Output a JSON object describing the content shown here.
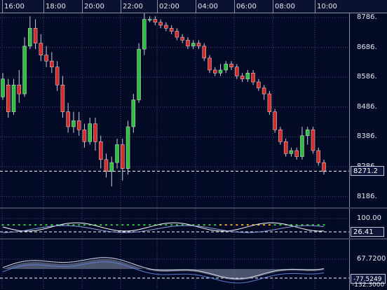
{
  "time_axis": {
    "labels": [
      "16:00",
      "18:00",
      "20:00",
      "22:00",
      "02:00",
      "04:00",
      "06:00",
      "08:00",
      "10:00"
    ]
  },
  "price_panel": {
    "ticks": [
      "8786.",
      "8686.",
      "8586.",
      "8486.",
      "8386.",
      "8286.",
      "8186."
    ],
    "current_price": "8271.2"
  },
  "indicator_panel_1": {
    "ticks": [
      "100.00"
    ],
    "current_value": "26.41"
  },
  "indicator_panel_2": {
    "ticks": [
      "67.7200",
      "-77.5249",
      "-132.3000"
    ]
  },
  "colors": {
    "background": "#030a26",
    "bull_candle": "#2fbf3f",
    "bear_candle": "#d42b2b",
    "grid": "#3a4a7a",
    "price_line": "#ffffff"
  },
  "chart_data": {
    "type": "candlestick",
    "x_labels": [
      "16:00",
      "18:00",
      "20:00",
      "22:00",
      "02:00",
      "04:00",
      "06:00",
      "08:00",
      "10:00"
    ],
    "y_ticks": [
      8786,
      8686,
      8586,
      8486,
      8386,
      8286,
      8186
    ],
    "last_price": 8271.2,
    "candles": [
      [
        8520,
        8580,
        8600,
        8510
      ],
      [
        8560,
        8470,
        8580,
        8450
      ],
      [
        8470,
        8560,
        8580,
        8460
      ],
      [
        8560,
        8530,
        8610,
        8500
      ],
      [
        8530,
        8690,
        8720,
        8520
      ],
      [
        8690,
        8750,
        8790,
        8680
      ],
      [
        8750,
        8700,
        8780,
        8680
      ],
      [
        8700,
        8660,
        8730,
        8640
      ],
      [
        8660,
        8640,
        8690,
        8620
      ],
      [
        8640,
        8620,
        8670,
        8600
      ],
      [
        8620,
        8560,
        8640,
        8540
      ],
      [
        8560,
        8470,
        8590,
        8450
      ],
      [
        8470,
        8420,
        8500,
        8400
      ],
      [
        8420,
        8440,
        8470,
        8400
      ],
      [
        8440,
        8410,
        8470,
        8390
      ],
      [
        8410,
        8370,
        8430,
        8350
      ],
      [
        8370,
        8430,
        8450,
        8360
      ],
      [
        8430,
        8370,
        8450,
        8340
      ],
      [
        8370,
        8310,
        8390,
        8280
      ],
      [
        8310,
        8270,
        8330,
        8250
      ],
      [
        8270,
        8300,
        8320,
        8220
      ],
      [
        8300,
        8360,
        8380,
        8280
      ],
      [
        8360,
        8280,
        8380,
        8240
      ],
      [
        8280,
        8420,
        8440,
        8260
      ],
      [
        8420,
        8510,
        8530,
        8400
      ],
      [
        8510,
        8680,
        8700,
        8500
      ],
      [
        8680,
        8780,
        8800,
        8660
      ],
      [
        8780,
        8780,
        8790,
        8770
      ],
      [
        8780,
        8770,
        8790,
        8760
      ],
      [
        8770,
        8760,
        8780,
        8750
      ],
      [
        8760,
        8750,
        8770,
        8740
      ],
      [
        8750,
        8740,
        8760,
        8730
      ],
      [
        8740,
        8720,
        8750,
        8710
      ],
      [
        8720,
        8710,
        8730,
        8700
      ],
      [
        8710,
        8690,
        8720,
        8680
      ],
      [
        8690,
        8700,
        8710,
        8680
      ],
      [
        8700,
        8690,
        8710,
        8680
      ],
      [
        8690,
        8650,
        8700,
        8640
      ],
      [
        8650,
        8610,
        8660,
        8600
      ],
      [
        8610,
        8600,
        8620,
        8590
      ],
      [
        8600,
        8610,
        8630,
        8590
      ],
      [
        8610,
        8630,
        8640,
        8600
      ],
      [
        8630,
        8620,
        8640,
        8610
      ],
      [
        8620,
        8590,
        8630,
        8580
      ],
      [
        8590,
        8580,
        8600,
        8570
      ],
      [
        8580,
        8600,
        8610,
        8570
      ],
      [
        8600,
        8570,
        8610,
        8560
      ],
      [
        8570,
        8550,
        8580,
        8540
      ],
      [
        8550,
        8530,
        8560,
        8510
      ],
      [
        8530,
        8470,
        8540,
        8460
      ],
      [
        8470,
        8410,
        8480,
        8400
      ],
      [
        8410,
        8370,
        8420,
        8360
      ],
      [
        8370,
        8330,
        8380,
        8320
      ],
      [
        8330,
        8340,
        8350,
        8320
      ],
      [
        8340,
        8320,
        8350,
        8310
      ],
      [
        8320,
        8390,
        8420,
        8310
      ],
      [
        8390,
        8410,
        8420,
        8360
      ],
      [
        8410,
        8340,
        8420,
        8330
      ],
      [
        8340,
        8300,
        8350,
        8290
      ],
      [
        8300,
        8270,
        8310,
        8260
      ]
    ]
  }
}
